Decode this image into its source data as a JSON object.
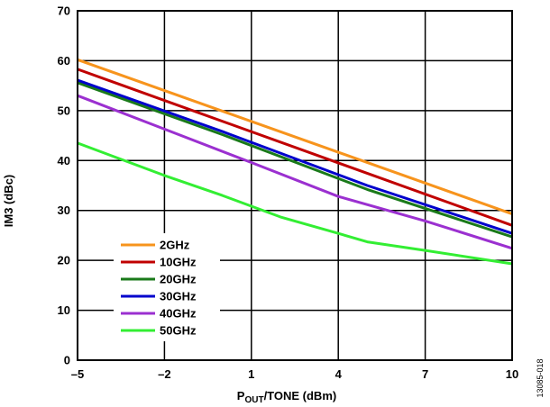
{
  "chart_data": {
    "type": "line",
    "title": "",
    "xlabel": {
      "main": "P",
      "sub": "OUT",
      "rest": "/TONE (dBm)"
    },
    "ylabel": "IM3 (dBc)",
    "xlim": [
      -5,
      10
    ],
    "ylim": [
      0,
      70
    ],
    "xticks": [
      -5,
      -2,
      1,
      4,
      7,
      10
    ],
    "xtick_labels": [
      "–5",
      "–2",
      "1",
      "4",
      "7",
      "10"
    ],
    "yticks": [
      0,
      10,
      20,
      30,
      40,
      50,
      60,
      70
    ],
    "ytick_labels": [
      "0",
      "10",
      "20",
      "30",
      "40",
      "50",
      "60",
      "70"
    ],
    "grid": true,
    "legend_position": "bottom-left",
    "figure_id": "13085-018",
    "series": [
      {
        "name": "2GHz",
        "color": "#f7941d",
        "x": [
          -5,
          10
        ],
        "y": [
          60.2,
          29.3
        ]
      },
      {
        "name": "10GHz",
        "color": "#c00000",
        "x": [
          -5,
          10
        ],
        "y": [
          58.3,
          27.0
        ]
      },
      {
        "name": "20GHz",
        "color": "#1a7a1a",
        "x": [
          -5,
          0,
          5,
          10
        ],
        "y": [
          55.6,
          45.2,
          34.2,
          24.7
        ]
      },
      {
        "name": "30GHz",
        "color": "#0000cc",
        "x": [
          -5,
          0,
          5,
          10
        ],
        "y": [
          56.1,
          45.8,
          35.0,
          25.4
        ]
      },
      {
        "name": "40GHz",
        "color": "#9b30d0",
        "x": [
          -5,
          -2,
          1,
          4,
          7,
          10
        ],
        "y": [
          53.0,
          46.3,
          39.6,
          32.8,
          27.9,
          22.4
        ]
      },
      {
        "name": "50GHz",
        "color": "#33ee33",
        "x": [
          -5,
          -2,
          0,
          2,
          4,
          5,
          7,
          10
        ],
        "y": [
          43.5,
          37.0,
          33.0,
          28.7,
          25.4,
          23.7,
          22.0,
          19.3
        ]
      }
    ]
  }
}
